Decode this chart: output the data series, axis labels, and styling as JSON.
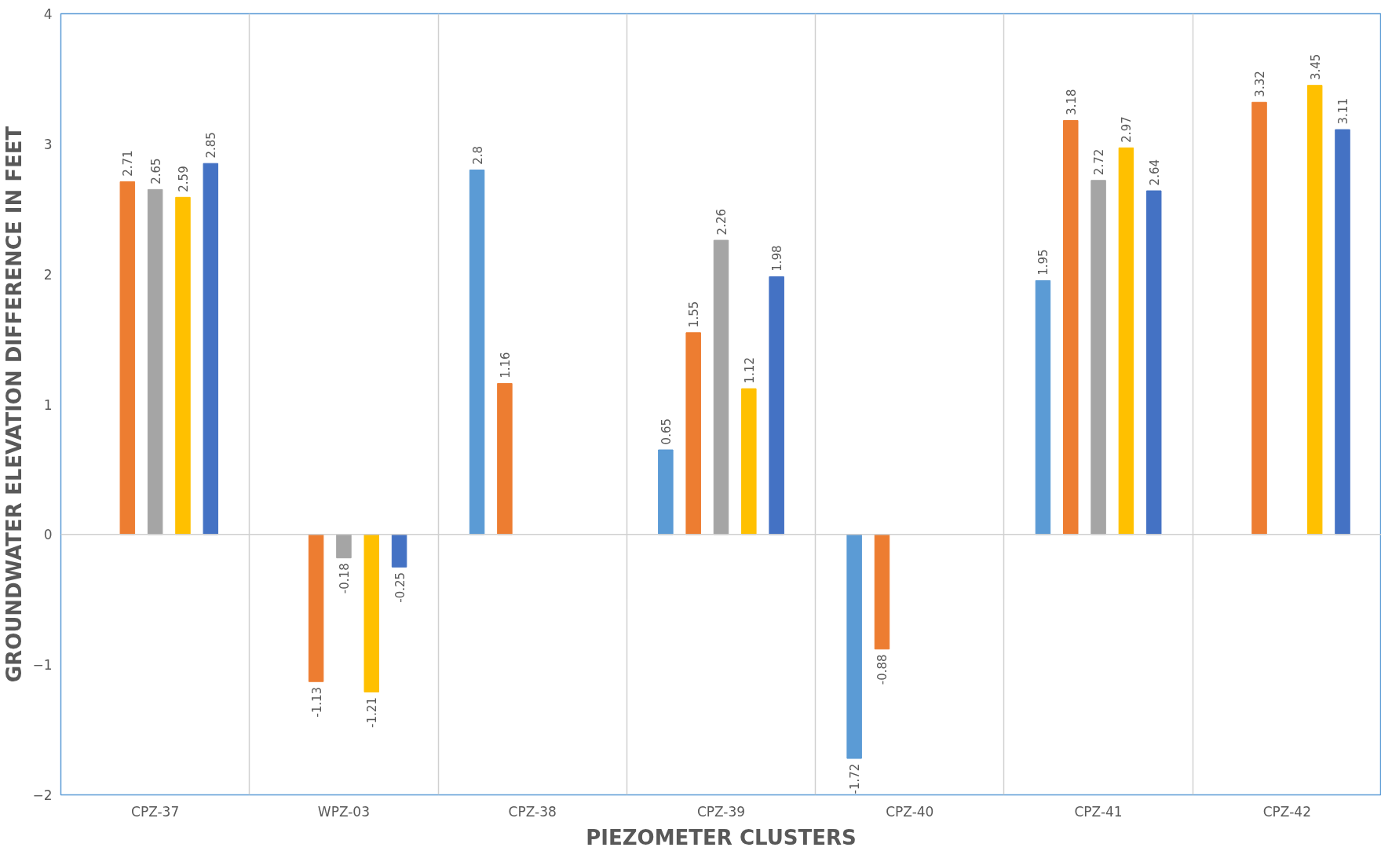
{
  "chart_data": {
    "type": "bar",
    "xlabel": "PIEZOMETER CLUSTERS",
    "ylabel": "GROUNDWATER ELEVATION DIFFERENCE IN FEET",
    "categories": [
      "CPZ-37",
      "WPZ-03",
      "CPZ-38",
      "CPZ-39",
      "CPZ-40",
      "CPZ-41",
      "CPZ-42"
    ],
    "series": [
      {
        "color": "#5b9bd5",
        "values": [
          null,
          null,
          2.8,
          0.65,
          -1.72,
          1.95,
          null
        ]
      },
      {
        "color": "#ed7d31",
        "values": [
          2.71,
          -1.13,
          1.16,
          1.55,
          -0.88,
          3.18,
          3.32
        ]
      },
      {
        "color": "#a5a5a5",
        "values": [
          2.65,
          -0.18,
          null,
          2.26,
          null,
          2.72,
          null
        ]
      },
      {
        "color": "#ffc000",
        "values": [
          2.59,
          -1.21,
          null,
          1.12,
          null,
          2.97,
          3.45
        ]
      },
      {
        "color": "#4472c4",
        "values": [
          2.85,
          -0.25,
          null,
          1.98,
          null,
          2.64,
          3.11
        ]
      }
    ],
    "ylim": [
      -2,
      4
    ],
    "yticks": [
      -2,
      -1,
      0,
      1,
      2,
      3,
      4
    ],
    "ref_lines": [
      {
        "axis": "y",
        "value": 0,
        "color": "#d0d0d0"
      }
    ],
    "grid": "x",
    "data_labels": true
  }
}
